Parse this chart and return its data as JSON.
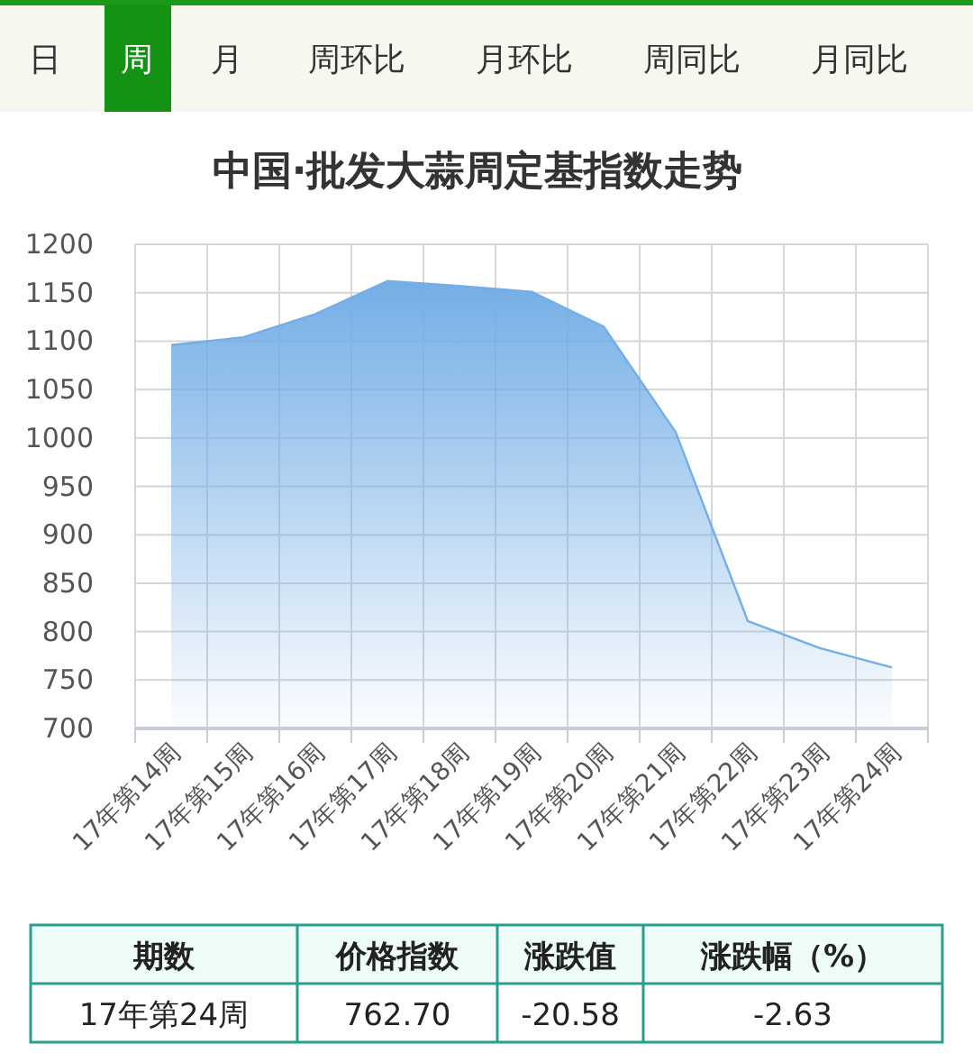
{
  "chart_data": [
    {
      "type": "other",
      "annotations": [
        "日",
        "周",
        "月",
        "周环比",
        "月环比",
        "周同比",
        "月同比"
      ]
    },
    {
      "type": "area",
      "title": "中国·批发大蒜周定基指数走势",
      "categories": [
        "17年第14周",
        "17年第15周",
        "17年第16周",
        "17年第17周",
        "17年第18周",
        "17年第19周",
        "17年第20周",
        "17年第21周",
        "17年第22周",
        "17年第23周",
        "17年第24周"
      ],
      "values": [
        1096,
        1104,
        1128,
        1162,
        1157,
        1151,
        1115,
        1006,
        811,
        783,
        763
      ],
      "color": "#74aee6",
      "ylim": [
        700,
        1200
      ],
      "yticks": [
        700,
        750,
        800,
        850,
        900,
        950,
        1000,
        1050,
        1100,
        1150,
        1200
      ],
      "grid": true
    },
    {
      "type": "other",
      "annotations": [
        "期数",
        "价格指数",
        "涨跌值",
        "涨跌幅（%）",
        "17年第24周",
        "762.70",
        "-20.58",
        "-2.63"
      ]
    }
  ]
}
